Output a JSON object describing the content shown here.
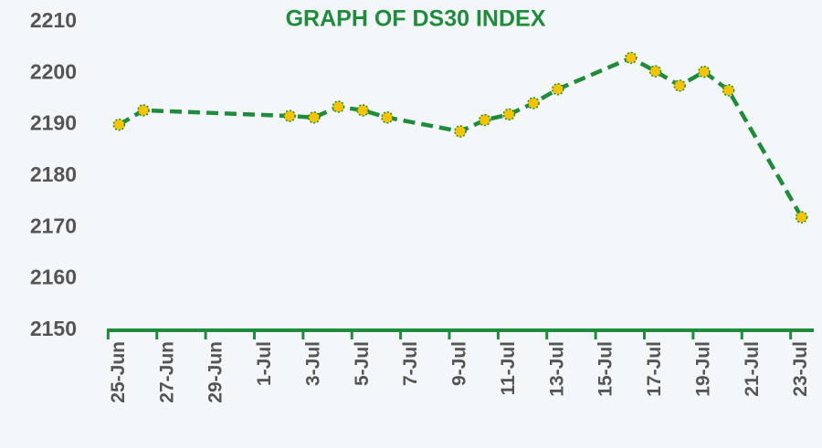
{
  "chart_data": {
    "type": "line",
    "title": "GRAPH OF DS30 INDEX",
    "x": [
      0,
      1,
      7,
      8,
      9,
      10,
      11,
      14,
      15,
      16,
      17,
      18,
      21,
      22,
      23,
      24,
      25,
      28
    ],
    "series": [
      {
        "name": "DS30",
        "color": "#1e8c3a",
        "marker_color": "#f5c400",
        "values": [
          2190,
          2192.8,
          2191.7,
          2191.4,
          2193.5,
          2192.8,
          2191.4,
          2188.7,
          2190.9,
          2192,
          2194.2,
          2196.9,
          2203,
          2200.4,
          2197.6,
          2200.3,
          2196.7,
          2172
        ]
      }
    ],
    "xlim": [
      -0.5,
      28.5
    ],
    "xticks": [
      {
        "value": 0,
        "label": "25-Jun"
      },
      {
        "value": 2,
        "label": "27-Jun"
      },
      {
        "value": 4,
        "label": "29-Jun"
      },
      {
        "value": 6,
        "label": "1-Jul"
      },
      {
        "value": 8,
        "label": "3-Jul"
      },
      {
        "value": 10,
        "label": "5-Jul"
      },
      {
        "value": 12,
        "label": "7-Jul"
      },
      {
        "value": 14,
        "label": "9-Jul"
      },
      {
        "value": 16,
        "label": "11-Jul"
      },
      {
        "value": 18,
        "label": "13-Jul"
      },
      {
        "value": 20,
        "label": "15-Jul"
      },
      {
        "value": 22,
        "label": "17-Jul"
      },
      {
        "value": 24,
        "label": "19-Jul"
      },
      {
        "value": 26,
        "label": "21-Jul"
      },
      {
        "value": 28,
        "label": "23-Jul"
      }
    ],
    "ylim": [
      2150,
      2210
    ],
    "yticks": [
      2150,
      2160,
      2170,
      2180,
      2190,
      2200,
      2210
    ],
    "grid": false
  }
}
